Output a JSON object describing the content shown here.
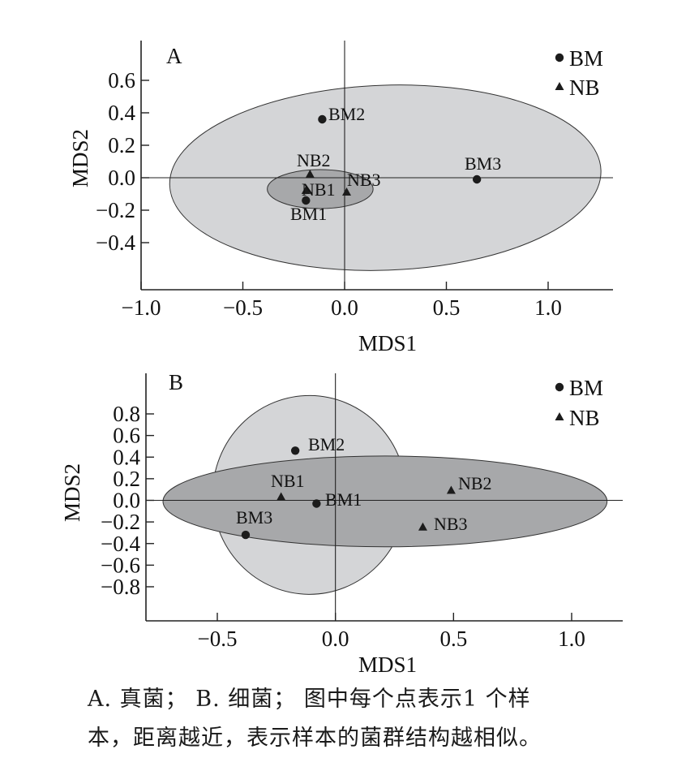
{
  "chart_data": [
    {
      "type": "scatter",
      "panel_label": "A",
      "xlabel": "MDS1",
      "ylabel": "MDS2",
      "xlim": [
        -1.0,
        1.3
      ],
      "ylim": [
        -0.7,
        0.8
      ],
      "xticks": [
        -1.0,
        -0.5,
        0.0,
        0.5,
        1.0
      ],
      "xtick_labels": [
        "−1.0",
        "−0.5",
        "0.0",
        "0.5",
        "1.0"
      ],
      "yticks": [
        0.6,
        0.4,
        0.2,
        0.0,
        -0.2,
        -0.4
      ],
      "ytick_labels": [
        "0.6",
        "0.4",
        "0.2",
        "0.0",
        "−0.2",
        "−0.4"
      ],
      "grid": false,
      "legend_position": "top-right",
      "legend": [
        {
          "label": "BM",
          "marker": "circle"
        },
        {
          "label": "NB",
          "marker": "triangle"
        }
      ],
      "series": [
        {
          "name": "BM",
          "marker": "circle",
          "points": [
            {
              "label": "BM1",
              "x": -0.19,
              "y": -0.14
            },
            {
              "label": "BM2",
              "x": -0.11,
              "y": 0.36
            },
            {
              "label": "BM3",
              "x": 0.65,
              "y": -0.01
            }
          ]
        },
        {
          "name": "NB",
          "marker": "triangle",
          "points": [
            {
              "label": "NB1",
              "x": -0.19,
              "y": -0.08
            },
            {
              "label": "NB2",
              "x": -0.17,
              "y": 0.02
            },
            {
              "label": "NB3",
              "x": 0.01,
              "y": -0.09
            }
          ]
        }
      ],
      "ellipses": [
        {
          "group": "BM",
          "cx": 0.2,
          "cy": 0.0,
          "rx": 1.06,
          "ry": 0.57,
          "angle": -2,
          "fill": "#d4d5d7"
        },
        {
          "group": "NB",
          "cx": -0.12,
          "cy": -0.07,
          "rx": 0.26,
          "ry": 0.12,
          "angle": 0,
          "fill": "#a7a8aa"
        }
      ]
    },
    {
      "type": "scatter",
      "panel_label": "B",
      "xlabel": "MDS1",
      "ylabel": "MDS2",
      "xlim": [
        -0.82,
        1.2
      ],
      "ylim": [
        -1.1,
        1.2
      ],
      "xticks": [
        -0.5,
        0.0,
        0.5,
        1.0
      ],
      "xtick_labels": [
        "−0.5",
        "0.0",
        "0.5",
        "1.0"
      ],
      "yticks": [
        0.8,
        0.6,
        0.4,
        0.2,
        0.0,
        -0.2,
        -0.4,
        -0.6,
        -0.8
      ],
      "ytick_labels": [
        "0.8",
        "0.6",
        "0.4",
        "0.2",
        "0.0",
        "−0.2",
        "−0.4",
        "−0.6",
        "−0.8"
      ],
      "grid": false,
      "legend_position": "top-right",
      "legend": [
        {
          "label": "BM",
          "marker": "circle"
        },
        {
          "label": "NB",
          "marker": "triangle"
        }
      ],
      "series": [
        {
          "name": "BM",
          "marker": "circle",
          "points": [
            {
              "label": "BM1",
              "x": -0.08,
              "y": -0.03
            },
            {
              "label": "BM2",
              "x": -0.17,
              "y": 0.46
            },
            {
              "label": "BM3",
              "x": -0.38,
              "y": -0.32
            }
          ]
        },
        {
          "name": "NB",
          "marker": "triangle",
          "points": [
            {
              "label": "NB1",
              "x": -0.23,
              "y": 0.03
            },
            {
              "label": "NB2",
              "x": 0.49,
              "y": 0.09
            },
            {
              "label": "NB3",
              "x": 0.37,
              "y": -0.25
            }
          ]
        }
      ],
      "ellipses": [
        {
          "group": "BM",
          "cx": -0.11,
          "cy": 0.05,
          "rx": 0.41,
          "ry": 0.92,
          "angle": 0.5,
          "fill": "#d4d5d7"
        },
        {
          "group": "NB",
          "cx": 0.21,
          "cy": -0.01,
          "rx": 0.94,
          "ry": 0.42,
          "angle": 0,
          "fill": "#a7a8aa"
        }
      ]
    }
  ],
  "caption": {
    "line1": "A. 真菌； B. 细菌； 图中每个点表示1 个样",
    "line2": "本，距离越近，表示样本的菌群结构越相似。"
  },
  "colors": {
    "ellipse_light": "#d4d5d7",
    "ellipse_dark": "#a7a8aa",
    "axis": "#222222",
    "marker": "#1c1c1c"
  }
}
